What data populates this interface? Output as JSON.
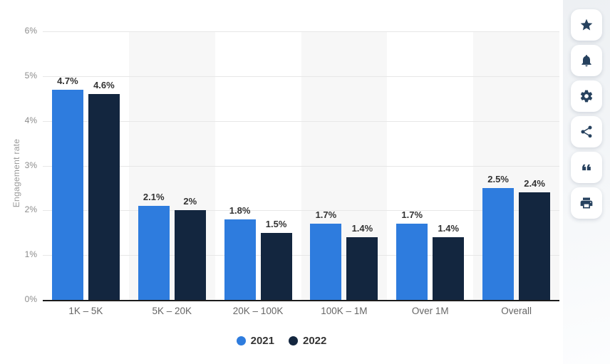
{
  "chart_data": {
    "type": "bar",
    "title": "",
    "ylabel": "Engagement rate",
    "ylim": [
      0,
      6
    ],
    "yticks": [
      "0%",
      "1%",
      "2%",
      "3%",
      "4%",
      "5%",
      "6%"
    ],
    "grid": true,
    "band_pattern": "alternating-category-background",
    "legend_position": "bottom",
    "categories": [
      "1K – 5K",
      "5K – 20K",
      "20K – 100K",
      "100K – 1M",
      "Over 1M",
      "Overall"
    ],
    "series": [
      {
        "name": "2021",
        "color": "#2e7cde",
        "values": [
          4.7,
          2.1,
          1.8,
          1.7,
          1.7,
          2.5
        ],
        "labels": [
          "4.7%",
          "2.1%",
          "1.8%",
          "1.7%",
          "1.7%",
          "2.5%"
        ]
      },
      {
        "name": "2022",
        "color": "#13263f",
        "values": [
          4.6,
          2.0,
          1.5,
          1.4,
          1.4,
          2.4
        ],
        "labels": [
          "4.6%",
          "2%",
          "1.5%",
          "1.4%",
          "1.4%",
          "2.4%"
        ]
      }
    ]
  },
  "toolbar": {
    "buttons": [
      {
        "name": "favorite-button",
        "icon": "star-icon"
      },
      {
        "name": "alert-button",
        "icon": "bell-icon"
      },
      {
        "name": "settings-button",
        "icon": "gear-icon"
      },
      {
        "name": "share-button",
        "icon": "share-icon"
      },
      {
        "name": "cite-button",
        "icon": "quote-icon"
      },
      {
        "name": "print-button",
        "icon": "print-icon"
      }
    ]
  },
  "colors": {
    "series_2021": "#2e7cde",
    "series_2022": "#13263f",
    "band": "#f7f7f7",
    "gridline": "#e7e7e7",
    "axis_line": "#1c1c1c",
    "tick_text": "#8c8c8c",
    "value_label_text": "#333333",
    "category_text": "#666666",
    "legend_text": "#333333",
    "icon": "#26415e"
  }
}
